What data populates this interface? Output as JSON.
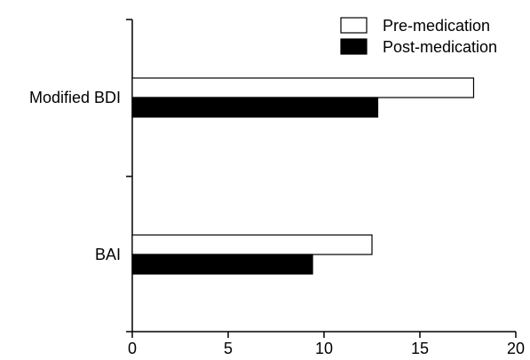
{
  "chart_data": {
    "type": "bar",
    "orientation": "horizontal",
    "categories": [
      "Modified BDI",
      "BAI"
    ],
    "series": [
      {
        "name": "Pre-medication",
        "values": [
          17.8,
          12.5
        ],
        "color": "#ffffff",
        "stroke": "#000000"
      },
      {
        "name": "Post-medication",
        "values": [
          12.8,
          9.4
        ],
        "color": "#000000",
        "stroke": "#000000"
      }
    ],
    "x_ticks": [
      "0",
      "5",
      "10",
      "15",
      "20"
    ],
    "xlim": [
      0,
      20
    ],
    "title": "",
    "xlabel": "",
    "ylabel": "",
    "grid": false,
    "legend_position": "top-right"
  }
}
